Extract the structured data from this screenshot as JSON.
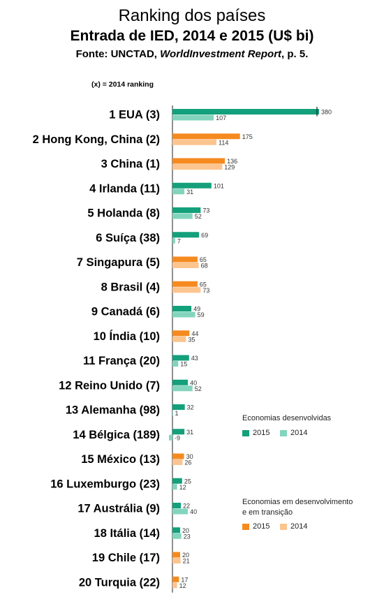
{
  "header": {
    "title": "Ranking dos países",
    "subtitle": "Entrada de IED, 2014 e 2015 (U$ bi)",
    "source_prefix": "Fonte: UNCTAD, ",
    "source_italic": "WorldInvestment Report",
    "source_suffix": ", p. 5.",
    "ranking_note": "(x) = 2014 ranking"
  },
  "colors": {
    "developed_2015": "#13a07a",
    "developed_2014": "#83d4bd",
    "developing_2015": "#f58a1f",
    "developing_2014": "#fcc48e"
  },
  "legend": {
    "developed": {
      "title": "Economias desenvolvidas",
      "y2015": "2015",
      "y2014": "2014"
    },
    "developing": {
      "title_line1": "Economias em desenvolvimento",
      "title_line2": "e em transição",
      "y2015": "2015",
      "y2014": "2014"
    }
  },
  "chart_data": {
    "type": "bar",
    "orientation": "horizontal",
    "title": "Entrada de IED, 2014 e 2015 (U$ bi)",
    "categories": [
      "1 EUA (3)",
      "2 Hong Kong, China (2)",
      "3 China (1)",
      "4 Irlanda (11)",
      "5 Holanda (8)",
      "6 Suíça (38)",
      "7 Singapura (5)",
      "8  Brasil (4)",
      "9 Canadá (6)",
      "10 Índia (10)",
      "11 França (20)",
      "12 Reino Unido (7)",
      "13 Alemanha (98)",
      "14 Bélgica (189)",
      "15 México (13)",
      "16 Luxemburgo (23)",
      "17 Austrália (9)",
      "18 Itália (14)",
      "19 Chile (17)",
      "20 Turquia (22)"
    ],
    "group": [
      "developed",
      "developing",
      "developing",
      "developed",
      "developed",
      "developed",
      "developing",
      "developing",
      "developed",
      "developing",
      "developed",
      "developed",
      "developed",
      "developed",
      "developing",
      "developed",
      "developed",
      "developed",
      "developing",
      "developing"
    ],
    "series": [
      {
        "name": "2015",
        "values": [
          380,
          175,
          136,
          101,
          73,
          69,
          65,
          65,
          49,
          44,
          43,
          40,
          32,
          31,
          30,
          25,
          22,
          20,
          20,
          17
        ]
      },
      {
        "name": "2014",
        "values": [
          107,
          114,
          129,
          31,
          52,
          7,
          68,
          73,
          59,
          35,
          15,
          52,
          1,
          -9,
          26,
          12,
          40,
          23,
          21,
          12
        ]
      }
    ],
    "xlim": [
      -9,
      380
    ],
    "grid": false
  }
}
